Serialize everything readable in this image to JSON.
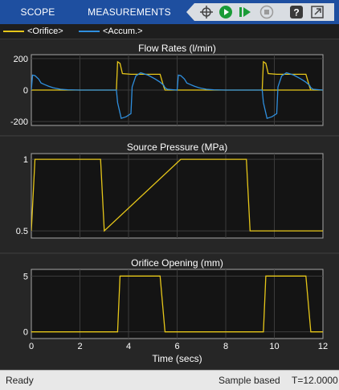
{
  "toolbar": {
    "tabs": [
      {
        "label": "SCOPE"
      },
      {
        "label": "MEASUREMENTS"
      }
    ],
    "icons": [
      "cursor-icon",
      "run-icon",
      "step-icon",
      "stop-icon",
      "help-icon",
      "undock-icon"
    ],
    "colors": {
      "bar": "#1e4fa0",
      "run": "#1a9b37"
    }
  },
  "legend": {
    "entries": [
      {
        "label": "<Orifice>",
        "color": "#e6c619"
      },
      {
        "label": "<Accum.>",
        "color": "#2f8fde"
      }
    ]
  },
  "status": {
    "left": "Ready",
    "mode": "Sample based",
    "time": "T=12.0000"
  },
  "chart_data": [
    {
      "type": "line",
      "title": "Flow Rates (l/min)",
      "xlim": [
        0,
        12
      ],
      "ylim": [
        -225,
        225
      ],
      "yticks": [
        200,
        0,
        -200
      ],
      "grid": true,
      "series": [
        {
          "name": "<Orifice>",
          "color": "#e6c619",
          "x": [
            0,
            0.5,
            3.5,
            3.55,
            3.65,
            3.75,
            4.1,
            5.3,
            5.45,
            5.5,
            12
          ],
          "y": [
            0,
            0,
            0,
            180,
            170,
            105,
            100,
            100,
            20,
            0,
            0
          ],
          "repeat": {
            "period": 6,
            "count": 2
          }
        },
        {
          "name": "<Accum.>",
          "color": "#2f8fde",
          "x": [
            0,
            0.05,
            0.15,
            0.3,
            0.4,
            0.55,
            0.7,
            0.9,
            1.2,
            1.5,
            2.0,
            3.5,
            3.55,
            3.7,
            3.9,
            4.1,
            4.15,
            4.3,
            4.5,
            4.8,
            5.1,
            5.3,
            5.45,
            5.5,
            5.6,
            6.0
          ],
          "y": [
            0,
            95,
            92,
            70,
            45,
            35,
            25,
            15,
            5,
            2,
            0,
            0,
            -80,
            -180,
            -170,
            -150,
            20,
            90,
            110,
            95,
            70,
            50,
            30,
            15,
            5,
            0
          ],
          "repeat": {
            "period": 6,
            "count": 2
          }
        }
      ]
    },
    {
      "type": "line",
      "title": "Source Pressure (MPa)",
      "xlim": [
        0,
        12
      ],
      "ylim": [
        0.45,
        1.04
      ],
      "yticks": [
        1,
        0.5
      ],
      "grid": true,
      "series": [
        {
          "name": "<Orifice>",
          "color": "#e6c619",
          "x": [
            0,
            0.15,
            2.85,
            3.0,
            6.15,
            8.85,
            9.0,
            12
          ],
          "y": [
            0.5,
            1.0,
            1.0,
            0.5,
            1.0,
            1.0,
            0.5,
            0.5
          ]
        }
      ]
    },
    {
      "type": "line",
      "title": "Orifice Opening (mm)",
      "xlim": [
        0,
        12
      ],
      "ylim": [
        -0.6,
        5.6
      ],
      "yticks": [
        5,
        0
      ],
      "xticks": [
        0,
        2,
        4,
        6,
        8,
        10,
        12
      ],
      "xlabel": "Time (secs)",
      "grid": true,
      "series": [
        {
          "name": "<Orifice>",
          "color": "#e6c619",
          "x": [
            0,
            3.55,
            3.65,
            5.3,
            5.5,
            9.55,
            9.65,
            11.3,
            11.5,
            12
          ],
          "y": [
            0,
            0,
            5,
            5,
            0,
            0,
            5,
            5,
            0,
            0
          ]
        }
      ]
    }
  ]
}
